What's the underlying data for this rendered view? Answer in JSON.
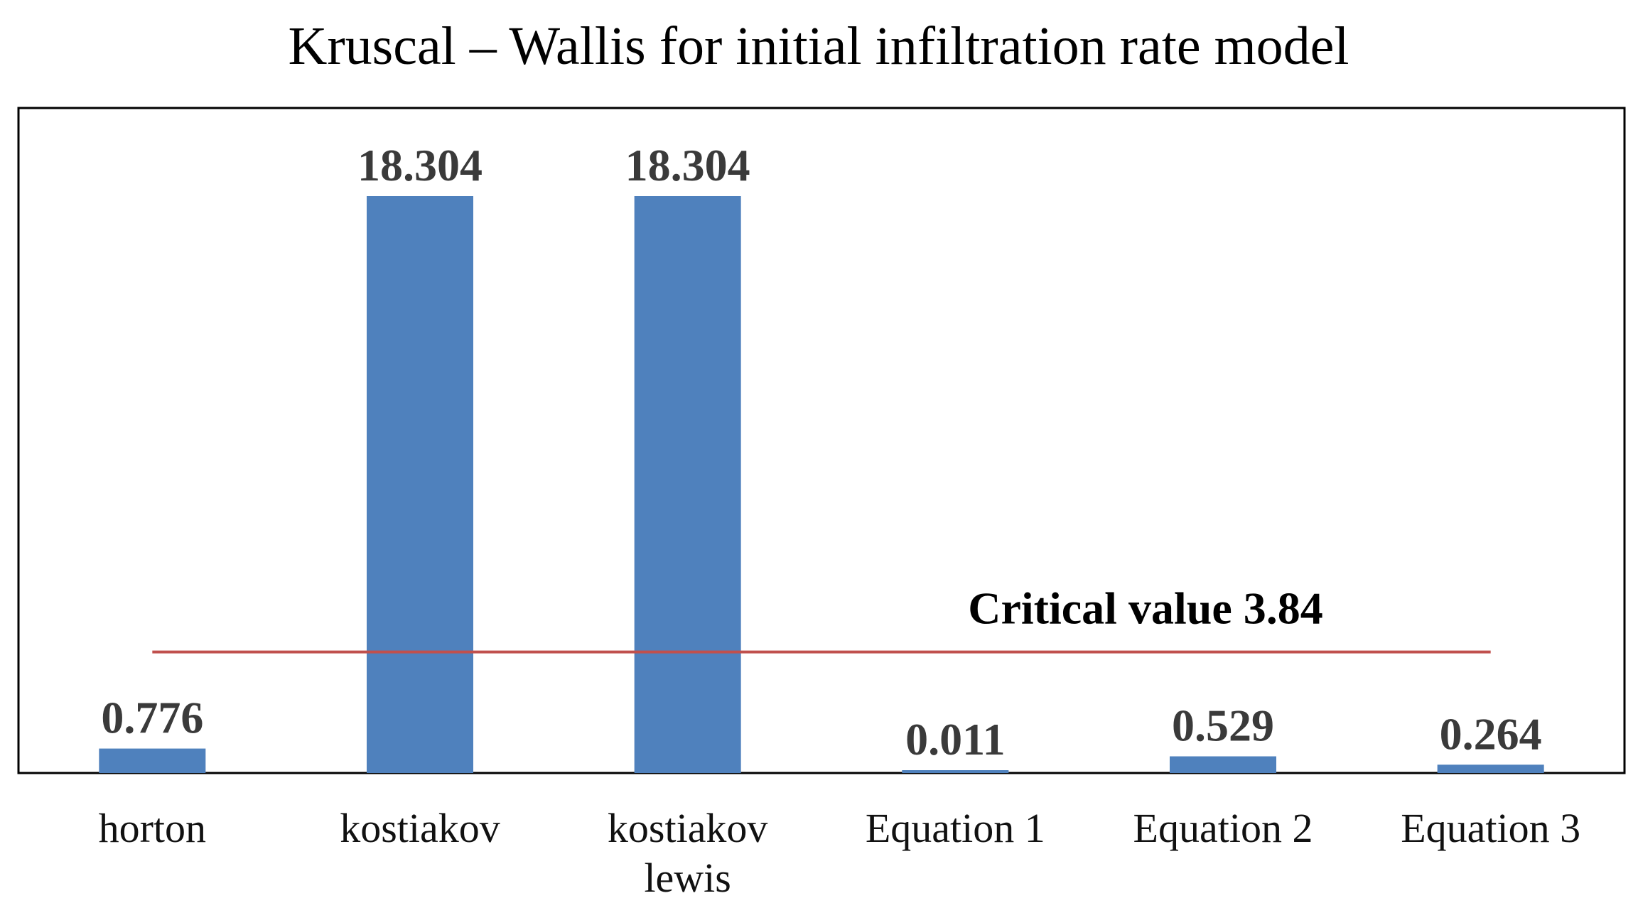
{
  "chart_data": {
    "type": "bar",
    "title": "Kruscal – Wallis for initial infiltration rate model",
    "categories": [
      [
        "horton"
      ],
      [
        "kostiakov"
      ],
      [
        "kostiakov",
        "lewis"
      ],
      [
        "Equation 1"
      ],
      [
        "Equation 2"
      ],
      [
        "Equation 3"
      ]
    ],
    "values": [
      0.776,
      18.304,
      18.304,
      0.011,
      0.529,
      0.264
    ],
    "value_labels": [
      "0.776",
      "18.304",
      "18.304",
      "0.011",
      "0.529",
      "0.264"
    ],
    "ylim": [
      0,
      18.304
    ],
    "xlabel": "",
    "ylabel": "",
    "grid": false,
    "critical_value": 3.84,
    "critical_label": "Critical value 3.84",
    "colors": {
      "bar": "#4F81BD",
      "critical_line": "#C0504D",
      "frame": "#000000"
    }
  }
}
